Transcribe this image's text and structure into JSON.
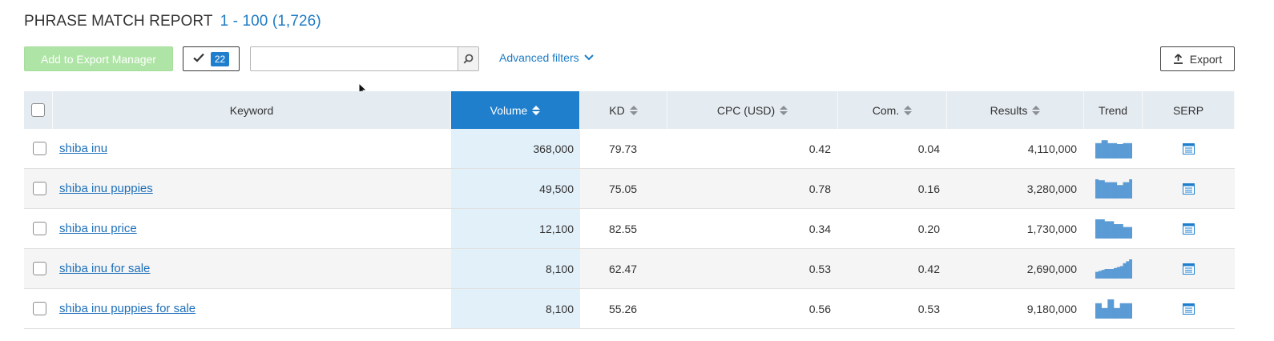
{
  "report": {
    "title": "PHRASE MATCH REPORT",
    "range": "1 - 100 (1,726)"
  },
  "toolbar": {
    "add_to_export_manager_label": "Add to Export Manager",
    "selected_count": "22",
    "search_value": "",
    "search_placeholder": "",
    "advanced_filters_label": "Advanced filters",
    "export_label": "Export"
  },
  "table": {
    "columns": {
      "keyword": "Keyword",
      "volume": "Volume",
      "kd": "KD",
      "cpc": "CPC (USD)",
      "com": "Com.",
      "results": "Results",
      "trend": "Trend",
      "serp": "SERP"
    },
    "rows": [
      {
        "keyword": "shiba inu",
        "volume": "368,000",
        "kd": "79.73",
        "cpc": "0.42",
        "com": "0.04",
        "results": "4,110,000",
        "trend": [
          0.8,
          0.8,
          0.95,
          0.95,
          0.8,
          0.8,
          0.8,
          0.75,
          0.75,
          0.8,
          0.8,
          0.8
        ]
      },
      {
        "keyword": "shiba inu puppies",
        "volume": "49,500",
        "kd": "75.05",
        "cpc": "0.78",
        "com": "0.16",
        "results": "3,280,000",
        "trend": [
          1.0,
          0.95,
          0.95,
          0.85,
          0.85,
          0.85,
          0.85,
          0.7,
          0.7,
          0.85,
          0.85,
          1.0
        ]
      },
      {
        "keyword": "shiba inu price",
        "volume": "12,100",
        "kd": "82.55",
        "cpc": "0.34",
        "com": "0.20",
        "results": "1,730,000",
        "trend": [
          1.0,
          1.0,
          1.0,
          0.9,
          0.9,
          0.9,
          0.75,
          0.75,
          0.75,
          0.6,
          0.6,
          0.6
        ]
      },
      {
        "keyword": "shiba inu for sale",
        "volume": "8,100",
        "kd": "62.47",
        "cpc": "0.53",
        "com": "0.42",
        "results": "2,690,000",
        "trend": [
          0.35,
          0.4,
          0.45,
          0.5,
          0.5,
          0.5,
          0.55,
          0.6,
          0.65,
          0.8,
          0.9,
          1.0
        ]
      },
      {
        "keyword": "shiba inu puppies for sale",
        "volume": "8,100",
        "kd": "55.26",
        "cpc": "0.56",
        "com": "0.53",
        "results": "9,180,000",
        "trend": [
          0.8,
          0.8,
          0.55,
          0.55,
          1.0,
          1.0,
          0.55,
          0.55,
          0.8,
          0.8,
          0.8,
          0.8
        ]
      }
    ]
  },
  "colors": {
    "accent": "#1f7fcd",
    "trend_bar": "#5b9bd5",
    "export_manager_bg": "#aee4a5",
    "link": "#1d6fba"
  },
  "icons": {
    "check": "check-icon",
    "search": "search-icon",
    "chevron": "chevron-down-icon",
    "export": "upload-icon",
    "serp": "serp-list-icon"
  }
}
